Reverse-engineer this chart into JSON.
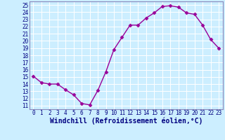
{
  "x": [
    0,
    1,
    2,
    3,
    4,
    5,
    6,
    7,
    8,
    9,
    10,
    11,
    12,
    13,
    14,
    15,
    16,
    17,
    18,
    19,
    20,
    21,
    22,
    23
  ],
  "y": [
    15.1,
    14.2,
    14.0,
    14.0,
    13.2,
    12.5,
    11.3,
    11.1,
    13.1,
    15.7,
    18.8,
    20.5,
    22.2,
    22.2,
    23.2,
    23.9,
    24.8,
    24.9,
    24.7,
    23.9,
    23.7,
    22.2,
    20.2,
    19.0
  ],
  "line_color": "#990099",
  "marker": "D",
  "markersize": 2.5,
  "linewidth": 1.0,
  "xlabel": "Windchill (Refroidissement éolien,°C)",
  "xlabel_fontsize": 7,
  "xlim": [
    -0.5,
    23.5
  ],
  "ylim": [
    10.5,
    25.5
  ],
  "yticks": [
    11,
    12,
    13,
    14,
    15,
    16,
    17,
    18,
    19,
    20,
    21,
    22,
    23,
    24,
    25
  ],
  "xticks": [
    0,
    1,
    2,
    3,
    4,
    5,
    6,
    7,
    8,
    9,
    10,
    11,
    12,
    13,
    14,
    15,
    16,
    17,
    18,
    19,
    20,
    21,
    22,
    23
  ],
  "bg_color": "#cceeff",
  "grid_color": "#ffffff",
  "tick_fontsize": 5.5,
  "axis_label_color": "#000080",
  "spine_color": "#8888bb"
}
